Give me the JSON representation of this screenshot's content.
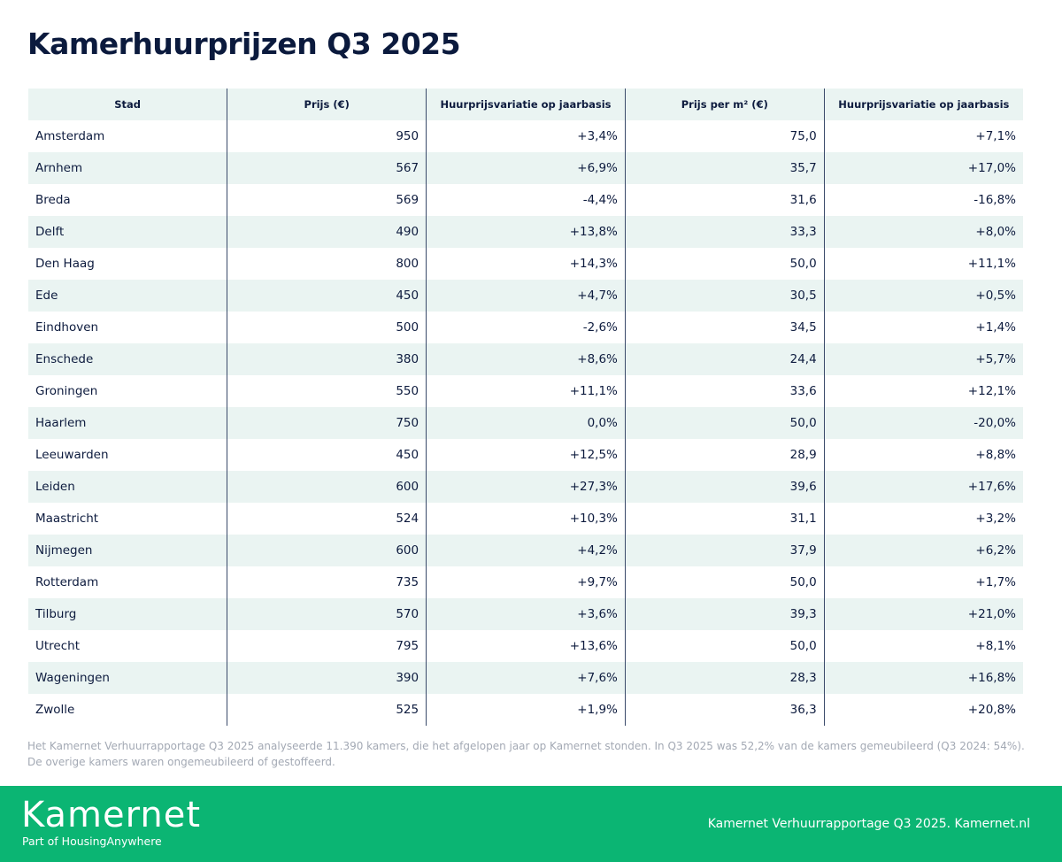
{
  "title": "Kamerhuurprijzen Q3 2025",
  "table": {
    "headers": [
      "Stad",
      "Prijs (€)",
      "Huurprijsvariatie op jaarbasis",
      "Prijs per m² (€)",
      "Huurprijsvariatie op jaarbasis"
    ],
    "rows": [
      [
        "Amsterdam",
        "950",
        "+3,4%",
        "75,0",
        "+7,1%"
      ],
      [
        "Arnhem",
        "567",
        "+6,9%",
        "35,7",
        "+17,0%"
      ],
      [
        "Breda",
        "569",
        "-4,4%",
        "31,6",
        "-16,8%"
      ],
      [
        "Delft",
        "490",
        "+13,8%",
        "33,3",
        "+8,0%"
      ],
      [
        "Den Haag",
        "800",
        "+14,3%",
        "50,0",
        "+11,1%"
      ],
      [
        "Ede",
        "450",
        "+4,7%",
        "30,5",
        "+0,5%"
      ],
      [
        "Eindhoven",
        "500",
        "-2,6%",
        "34,5",
        "+1,4%"
      ],
      [
        "Enschede",
        "380",
        "+8,6%",
        "24,4",
        "+5,7%"
      ],
      [
        "Groningen",
        "550",
        "+11,1%",
        "33,6",
        "+12,1%"
      ],
      [
        "Haarlem",
        "750",
        "0,0%",
        "50,0",
        "-20,0%"
      ],
      [
        "Leeuwarden",
        "450",
        "+12,5%",
        "28,9",
        "+8,8%"
      ],
      [
        "Leiden",
        "600",
        "+27,3%",
        "39,6",
        "+17,6%"
      ],
      [
        "Maastricht",
        "524",
        "+10,3%",
        "31,1",
        "+3,2%"
      ],
      [
        "Nijmegen",
        "600",
        "+4,2%",
        "37,9",
        "+6,2%"
      ],
      [
        "Rotterdam",
        "735",
        "+9,7%",
        "50,0",
        "+1,7%"
      ],
      [
        "Tilburg",
        "570",
        "+3,6%",
        "39,3",
        "+21,0%"
      ],
      [
        "Utrecht",
        "795",
        "+13,6%",
        "50,0",
        "+8,1%"
      ],
      [
        "Wageningen",
        "390",
        "+7,6%",
        "28,3",
        "+16,8%"
      ],
      [
        "Zwolle",
        "525",
        "+1,9%",
        "36,3",
        "+20,8%"
      ]
    ]
  },
  "note": "Het Kamernet Verhuurrapportage Q3 2025 analyseerde 11.390 kamers, die het afgelopen jaar op Kamernet stonden. In Q3 2025 was 52,2% van de kamers gemeubileerd (Q3 2024: 54%). De overige kamers waren ongemeubileerd of gestoffeerd.",
  "footer": {
    "logo": "Kamernet",
    "tagline": "Part of HousingAnywhere",
    "source": "Kamernet Verhuurrapportage Q3 2025. Kamernet.nl"
  },
  "colors": {
    "brand": "#0bb573",
    "title": "#0b1a3d",
    "row_shade": "#eaf4f2"
  }
}
